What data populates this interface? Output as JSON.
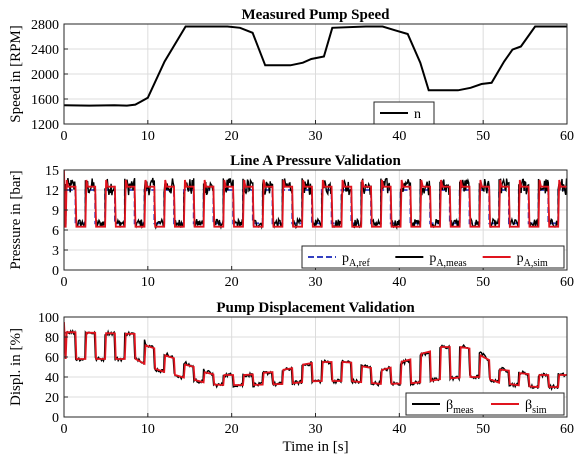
{
  "chart_data": [
    {
      "type": "line",
      "title": "Measured Pump Speed",
      "xlabel": "",
      "ylabel": "Speed in [RPM]",
      "xlim": [
        0,
        60
      ],
      "ylim": [
        1200,
        2800
      ],
      "xticks": [
        0,
        10,
        20,
        30,
        40,
        50,
        60
      ],
      "yticks": [
        1200,
        1600,
        2000,
        2400,
        2800
      ],
      "grid": true,
      "legend_position": "bottom-right",
      "series": [
        {
          "name": "n",
          "color": "#000000",
          "style": "solid",
          "x": [
            0,
            3,
            6,
            7.5,
            8.5,
            9.2,
            10,
            12,
            14.5,
            18,
            19.5,
            21,
            22.5,
            24,
            27,
            28.5,
            29.5,
            31,
            32,
            36,
            38,
            39.5,
            41,
            42.5,
            43.5,
            47,
            48.5,
            49.8,
            51,
            52.5,
            53.5,
            54.5,
            56.2,
            60
          ],
          "y": [
            1500,
            1495,
            1500,
            1495,
            1510,
            1560,
            1620,
            2200,
            2760,
            2760,
            2760,
            2740,
            2660,
            2140,
            2140,
            2180,
            2240,
            2280,
            2740,
            2760,
            2760,
            2700,
            2640,
            2180,
            1740,
            1740,
            1780,
            1840,
            1860,
            2200,
            2390,
            2440,
            2760,
            2760
          ]
        }
      ]
    },
    {
      "type": "line",
      "title": "Line A Pressure Validation",
      "xlabel": "",
      "ylabel": "Pressure in [bar]",
      "xlim": [
        0,
        60
      ],
      "ylim": [
        0,
        15
      ],
      "xticks": [
        0,
        10,
        20,
        30,
        40,
        50,
        60
      ],
      "yticks": [
        0,
        3,
        6,
        9,
        12,
        15
      ],
      "grid": true,
      "legend_position": "bottom-right",
      "square_wave": {
        "period_s": 2.35,
        "start_s": 0.2,
        "duty": 0.5,
        "high_bar": 12,
        "low_bar": 7
      },
      "series": [
        {
          "name": "p",
          "subscript": "A,ref",
          "color": "#3340c0",
          "style": "dashed",
          "low": 7,
          "high": 12
        },
        {
          "name": "p",
          "subscript": "A,meas",
          "color": "#000000",
          "style": "solid",
          "low": 7,
          "high": 12.5,
          "noise_bar": 1.3
        },
        {
          "name": "p",
          "subscript": "A,sim",
          "color": "#e0141e",
          "style": "solid",
          "low": 6.5,
          "high": 12.5,
          "peak": 13.5
        }
      ]
    },
    {
      "type": "line",
      "title": "Pump Displacement Validation",
      "xlabel": "Time in [s]",
      "ylabel": "Displ. in [%]",
      "xlim": [
        0,
        60
      ],
      "ylim": [
        0,
        100
      ],
      "xticks": [
        0,
        10,
        20,
        30,
        40,
        50,
        60
      ],
      "yticks": [
        0,
        20,
        40,
        60,
        80,
        100
      ],
      "grid": true,
      "legend_position": "bottom-right",
      "envelope": {
        "x": [
          0,
          9,
          10,
          14,
          18,
          22,
          26,
          30,
          34,
          38,
          42,
          45,
          48,
          50,
          52,
          56,
          60
        ],
        "low": [
          58,
          58,
          50,
          40,
          32,
          32,
          33,
          36,
          36,
          33,
          34,
          38,
          40,
          40,
          34,
          30,
          30
        ],
        "high": [
          85,
          83,
          72,
          55,
          42,
          42,
          46,
          55,
          55,
          46,
          60,
          70,
          70,
          62,
          48,
          42,
          42
        ]
      },
      "series": [
        {
          "name": "β",
          "subscript": "meas",
          "color": "#000000",
          "style": "solid"
        },
        {
          "name": "β",
          "subscript": "sim",
          "color": "#e0141e",
          "style": "solid",
          "start_value": 95
        }
      ]
    }
  ]
}
